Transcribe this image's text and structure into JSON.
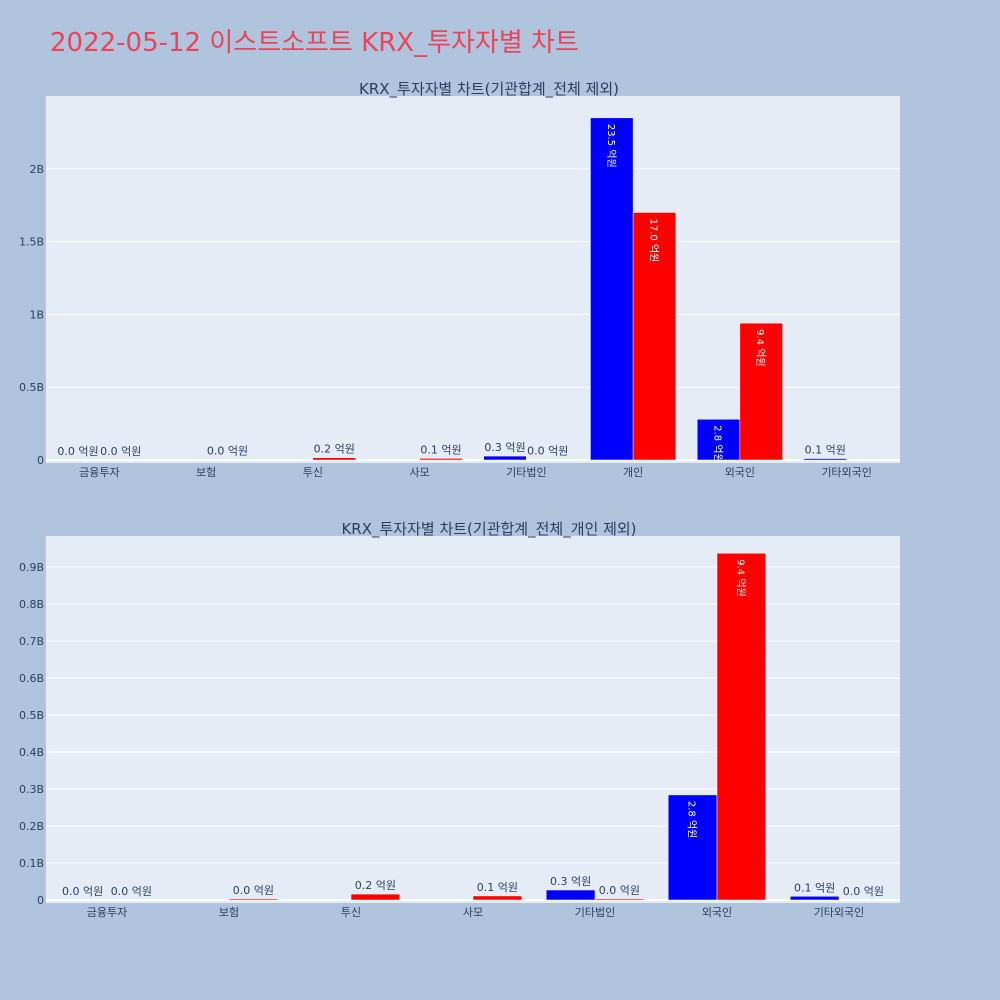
{
  "page_title": "2022-05-12 이스트소프트 KRX_투자자별 차트",
  "colors": {
    "background": "#b0c4de",
    "plot_bg": "#e5ecf6",
    "title": "#e8455a",
    "buy": "#0000ff",
    "sell": "#ff0000"
  },
  "chart_data": [
    {
      "type": "bar",
      "title": "KRX_투자자별 차트(기관합계_전체 제외)",
      "categories": [
        "금융투자",
        "보험",
        "투신",
        "사모",
        "기타법인",
        "개인",
        "외국인",
        "기타외국인"
      ],
      "ylim": [
        0,
        2.5
      ],
      "yticks": [
        0,
        0.5,
        1,
        1.5,
        2
      ],
      "ytick_labels": [
        "0",
        "0.5B",
        "1B",
        "1.5B",
        "2B"
      ],
      "series": [
        {
          "color": "#0000ff",
          "values": [
            0.0,
            0.0,
            0.0,
            0.0,
            0.027,
            2.35,
            0.28,
            0.01
          ],
          "labels": [
            "0.0 억원",
            "",
            "",
            "",
            "0.3 억원",
            "23.5 억원",
            "2.8 억원",
            "0.1 억원"
          ]
        },
        {
          "color": "#ff0000",
          "values": [
            0.0,
            0.003,
            0.016,
            0.011,
            0.003,
            1.7,
            0.94,
            0.0
          ],
          "labels": [
            "0.0 억원",
            "0.0 억원",
            "0.2 억원",
            "0.1 억원",
            "0.0 억원",
            "17.0 억원",
            "9.4 억원",
            ""
          ]
        }
      ]
    },
    {
      "type": "bar",
      "title": "KRX_투자자별 차트(기관합계_전체_개인 제외)",
      "categories": [
        "금융투자",
        "보험",
        "투신",
        "사모",
        "기타법인",
        "외국인",
        "기타외국인"
      ],
      "ylim": [
        0,
        0.9836
      ],
      "yticks": [
        0,
        0.1,
        0.2,
        0.3,
        0.4,
        0.5,
        0.6,
        0.7,
        0.8,
        0.9
      ],
      "ytick_labels": [
        "0",
        "0.1B",
        "0.2B",
        "0.3B",
        "0.4B",
        "0.5B",
        "0.6B",
        "0.7B",
        "0.8B",
        "0.9B"
      ],
      "series": [
        {
          "color": "#0000ff",
          "values": [
            0.0,
            0.0,
            0.0,
            0.0,
            0.027,
            0.284,
            0.01
          ],
          "labels": [
            "0.0 억원",
            "",
            "",
            "",
            "0.3 억원",
            "2.8 억원",
            "0.1 억원"
          ]
        },
        {
          "color": "#ff0000",
          "values": [
            0.0,
            0.003,
            0.016,
            0.011,
            0.003,
            0.937,
            0.0
          ],
          "labels": [
            "0.0 억원",
            "0.0 억원",
            "0.2 억원",
            "0.1 억원",
            "0.0 억원",
            "9.4 억원",
            "0.0 억원"
          ]
        }
      ]
    }
  ]
}
